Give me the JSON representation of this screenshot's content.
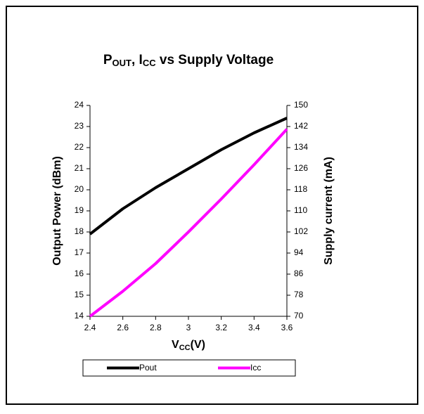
{
  "chart_data": {
    "type": "line",
    "title": [
      "P",
      "OUT",
      ", I",
      "CC",
      " vs Supply Voltage"
    ],
    "x_label": [
      "V",
      "CC",
      "(V)"
    ],
    "y_label": "Output Power (dBm)",
    "y2_label": "Supply current (mA)",
    "x": [
      2.4,
      2.6,
      2.8,
      3,
      3.2,
      3.4,
      3.6
    ],
    "series": [
      {
        "name": "Pout",
        "color": "#000000",
        "values": [
          17.9,
          19.1,
          20.1,
          21.0,
          21.9,
          22.7,
          23.4
        ]
      },
      {
        "name": "Icc",
        "color": "#ff00ff",
        "axis": "y2",
        "values": [
          70,
          79.5,
          90,
          102,
          114.5,
          127.5,
          141
        ]
      }
    ],
    "xlim": [
      2.4,
      3.6
    ],
    "xticks": [
      2.4,
      2.6,
      2.8,
      3,
      3.2,
      3.4,
      3.6
    ],
    "ylim": [
      14,
      24
    ],
    "yticks": [
      14,
      15,
      16,
      17,
      18,
      19,
      20,
      21,
      22,
      23,
      24
    ],
    "y2lim": [
      70,
      150
    ],
    "y2ticks": [
      70,
      78,
      86,
      94,
      102,
      110,
      118,
      126,
      134,
      142,
      150
    ],
    "grid": false,
    "legend": "bottom"
  }
}
